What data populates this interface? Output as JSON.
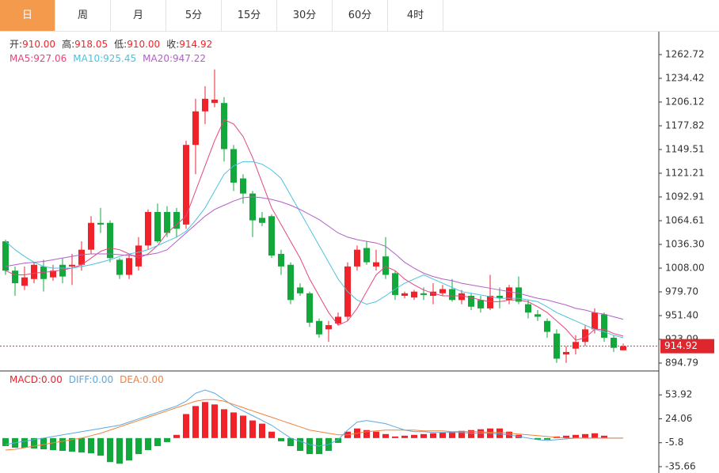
{
  "tabs": [
    "日",
    "周",
    "月",
    "5分",
    "15分",
    "30分",
    "60分",
    "4时"
  ],
  "active_tab": 0,
  "chart_data": {
    "type": "candlestick",
    "separator": ":",
    "ohlc_header": [
      {
        "label": "开",
        "value": "910.00"
      },
      {
        "label": "高",
        "value": "918.05"
      },
      {
        "label": "低",
        "value": "910.00"
      },
      {
        "label": "收",
        "value": "914.92"
      }
    ],
    "up_color": "#f0232b",
    "down_color": "#12a83b",
    "open": [
      1040,
      1005,
      987,
      995,
      1010,
      997,
      1012,
      1010,
      1012,
      1030,
      1062,
      1062,
      1018,
      1000,
      1010,
      1035,
      1075,
      1075,
      1075,
      1060,
      1155,
      1195,
      1205,
      1205,
      1150,
      1115,
      1097,
      1068,
      1070,
      1025,
      1012,
      985,
      978,
      945,
      935,
      942,
      950,
      1010,
      1032,
      1010,
      1022,
      1002,
      975,
      973,
      978,
      975,
      978,
      983,
      970,
      975,
      970,
      960,
      975,
      970,
      985,
      965,
      953,
      945,
      930,
      905,
      912,
      920,
      935,
      953,
      925,
      910
    ],
    "close": [
      1005,
      990,
      997,
      1012,
      995,
      1005,
      998,
      1012,
      1030,
      1062,
      1060,
      1020,
      1000,
      1020,
      1035,
      1075,
      1040,
      1050,
      1055,
      1155,
      1195,
      1210,
      1209,
      1150,
      1110,
      1097,
      1065,
      1062,
      1023,
      1010,
      970,
      978,
      943,
      929,
      940,
      950,
      1010,
      1030,
      1015,
      1015,
      1000,
      976,
      978,
      980,
      976,
      980,
      983,
      970,
      978,
      962,
      960,
      975,
      972,
      985,
      968,
      955,
      950,
      932,
      900,
      908,
      920,
      935,
      955,
      925,
      913,
      914.92
    ],
    "high": [
      1042,
      1010,
      1010,
      1015,
      1018,
      1012,
      1020,
      1025,
      1040,
      1070,
      1080,
      1065,
      1020,
      1025,
      1045,
      1078,
      1085,
      1082,
      1080,
      1160,
      1210,
      1225,
      1245,
      1212,
      1155,
      1120,
      1100,
      1075,
      1072,
      1030,
      1015,
      990,
      980,
      948,
      945,
      955,
      1015,
      1035,
      1040,
      1030,
      1045,
      1005,
      980,
      982,
      985,
      990,
      988,
      995,
      982,
      978,
      975,
      1000,
      985,
      988,
      998,
      970,
      958,
      948,
      935,
      915,
      928,
      940,
      960,
      955,
      928,
      918.05
    ],
    "low": [
      1000,
      975,
      982,
      990,
      980,
      993,
      990,
      988,
      1005,
      1025,
      1050,
      1015,
      995,
      995,
      1005,
      1030,
      1038,
      1045,
      1045,
      1055,
      1120,
      1180,
      1200,
      1135,
      1100,
      1085,
      1045,
      1058,
      1020,
      1000,
      965,
      975,
      938,
      925,
      920,
      940,
      945,
      1005,
      1012,
      1005,
      995,
      970,
      972,
      970,
      970,
      965,
      975,
      968,
      965,
      958,
      955,
      958,
      960,
      965,
      965,
      948,
      945,
      925,
      895,
      895,
      905,
      915,
      930,
      920,
      908,
      910
    ],
    "last_price": 914.92,
    "last_color": "#e0262d",
    "ylim": [
      886.3,
      1290.1
    ],
    "yticks": [
      1262.72,
      1234.42,
      1206.12,
      1177.82,
      1149.51,
      1121.21,
      1092.91,
      1064.61,
      {
        "value": 1036.3,
        "label": "1036.30"
      },
      {
        "value": 1008,
        "label": "1008.00"
      },
      {
        "value": 979.7,
        "label": "979.70"
      },
      {
        "value": 951.4,
        "label": "951.40"
      },
      923.09,
      894.79
    ],
    "series": [
      {
        "name": "MA5",
        "color": "#e4467d",
        "current": "927.06",
        "values": [
          1005,
          1000,
          1000,
          1002,
          1003,
          1004,
          1006,
          1008,
          1012,
          1020,
          1028,
          1032,
          1030,
          1025,
          1020,
          1025,
          1035,
          1050,
          1060,
          1070,
          1100,
          1130,
          1160,
          1185,
          1180,
          1165,
          1140,
          1110,
          1080,
          1060,
          1040,
          1020,
          995,
          975,
          955,
          940,
          945,
          960,
          980,
          1000,
          1010,
          1005,
          995,
          988,
          982,
          978,
          975,
          975,
          975,
          973,
          970,
          968,
          968,
          970,
          970,
          968,
          962,
          955,
          945,
          935,
          922,
          925,
          935,
          935,
          930,
          927
        ]
      },
      {
        "name": "MA10",
        "color": "#4cc2de",
        "current": "925.45",
        "values": [
          1040,
          1030,
          1022,
          1015,
          1010,
          1008,
          1008,
          1008,
          1010,
          1012,
          1015,
          1018,
          1022,
          1025,
          1027,
          1030,
          1035,
          1040,
          1045,
          1052,
          1065,
          1080,
          1100,
          1120,
          1130,
          1135,
          1135,
          1132,
          1125,
          1115,
          1095,
          1075,
          1055,
          1035,
          1015,
          995,
          980,
          970,
          965,
          968,
          975,
          983,
          990,
          995,
          1000,
          995,
          990,
          985,
          980,
          978,
          976,
          974,
          972,
          972,
          972,
          970,
          968,
          962,
          955,
          950,
          945,
          940,
          935,
          932,
          928,
          925
        ]
      },
      {
        "name": "MA20",
        "color": "#b45ec8",
        "current": "947.22",
        "values": [
          1010,
          1012,
          1014,
          1015,
          1016,
          1018,
          1020,
          1022,
          1024,
          1025,
          1025,
          1025,
          1024,
          1023,
          1023,
          1024,
          1026,
          1030,
          1040,
          1050,
          1060,
          1070,
          1078,
          1083,
          1088,
          1092,
          1093,
          1092,
          1090,
          1087,
          1083,
          1078,
          1072,
          1066,
          1058,
          1050,
          1045,
          1042,
          1040,
          1038,
          1034,
          1025,
          1015,
          1008,
          1002,
          998,
          995,
          993,
          990,
          988,
          986,
          984,
          982,
          980,
          978,
          975,
          972,
          970,
          967,
          964,
          960,
          958,
          955,
          953,
          950,
          947
        ]
      }
    ],
    "macd": {
      "ylim": [
        -43.6,
        82.8
      ],
      "yticks": [
        53.92,
        24.06,
        -5.8,
        -35.66
      ],
      "hist_name": "MACD",
      "hist_current": "0.00",
      "hist": [
        -10,
        -12,
        -12,
        -13,
        -14,
        -15,
        -16,
        -17,
        -18,
        -19,
        -22,
        -30,
        -32,
        -28,
        -20,
        -15,
        -10,
        -5,
        4,
        30,
        40,
        45,
        42,
        36,
        32,
        28,
        22,
        18,
        8,
        -4,
        -10,
        -16,
        -20,
        -20,
        -16,
        -6,
        8,
        12,
        10,
        8,
        5,
        2,
        3,
        4,
        5,
        6,
        7,
        8,
        9,
        10,
        11,
        12,
        12,
        8,
        4,
        0,
        -2,
        -2,
        2,
        3,
        4,
        5,
        6,
        3,
        0,
        0
      ],
      "series": [
        {
          "name": "DIFF",
          "color": "#5aa9e2",
          "current": "0.00",
          "values": [
            -8,
            -6,
            -4,
            -2,
            0,
            2,
            4,
            6,
            8,
            10,
            12,
            14,
            16,
            20,
            24,
            28,
            32,
            36,
            40,
            46,
            56,
            60,
            56,
            48,
            40,
            34,
            28,
            22,
            16,
            8,
            0,
            -4,
            -8,
            -10,
            -8,
            -2,
            10,
            20,
            22,
            20,
            18,
            14,
            10,
            8,
            8,
            7,
            7,
            7,
            7,
            6,
            6,
            6,
            5,
            4,
            2,
            0,
            -2,
            -3,
            -2,
            -1,
            0,
            0,
            0,
            0,
            0,
            0
          ]
        },
        {
          "name": "DEA",
          "color": "#f0823c",
          "current": "0.00",
          "values": [
            -15,
            -14,
            -12,
            -10,
            -8,
            -6,
            -4,
            -2,
            0,
            3,
            6,
            10,
            14,
            18,
            22,
            26,
            30,
            34,
            38,
            42,
            46,
            48,
            48,
            46,
            42,
            38,
            34,
            30,
            26,
            22,
            18,
            14,
            10,
            8,
            6,
            4,
            4,
            6,
            8,
            9,
            10,
            10,
            10,
            10,
            9,
            9,
            9,
            8,
            8,
            8,
            8,
            7,
            7,
            6,
            5,
            4,
            3,
            2,
            1,
            0,
            0,
            0,
            0,
            0,
            0,
            0
          ]
        }
      ]
    }
  }
}
